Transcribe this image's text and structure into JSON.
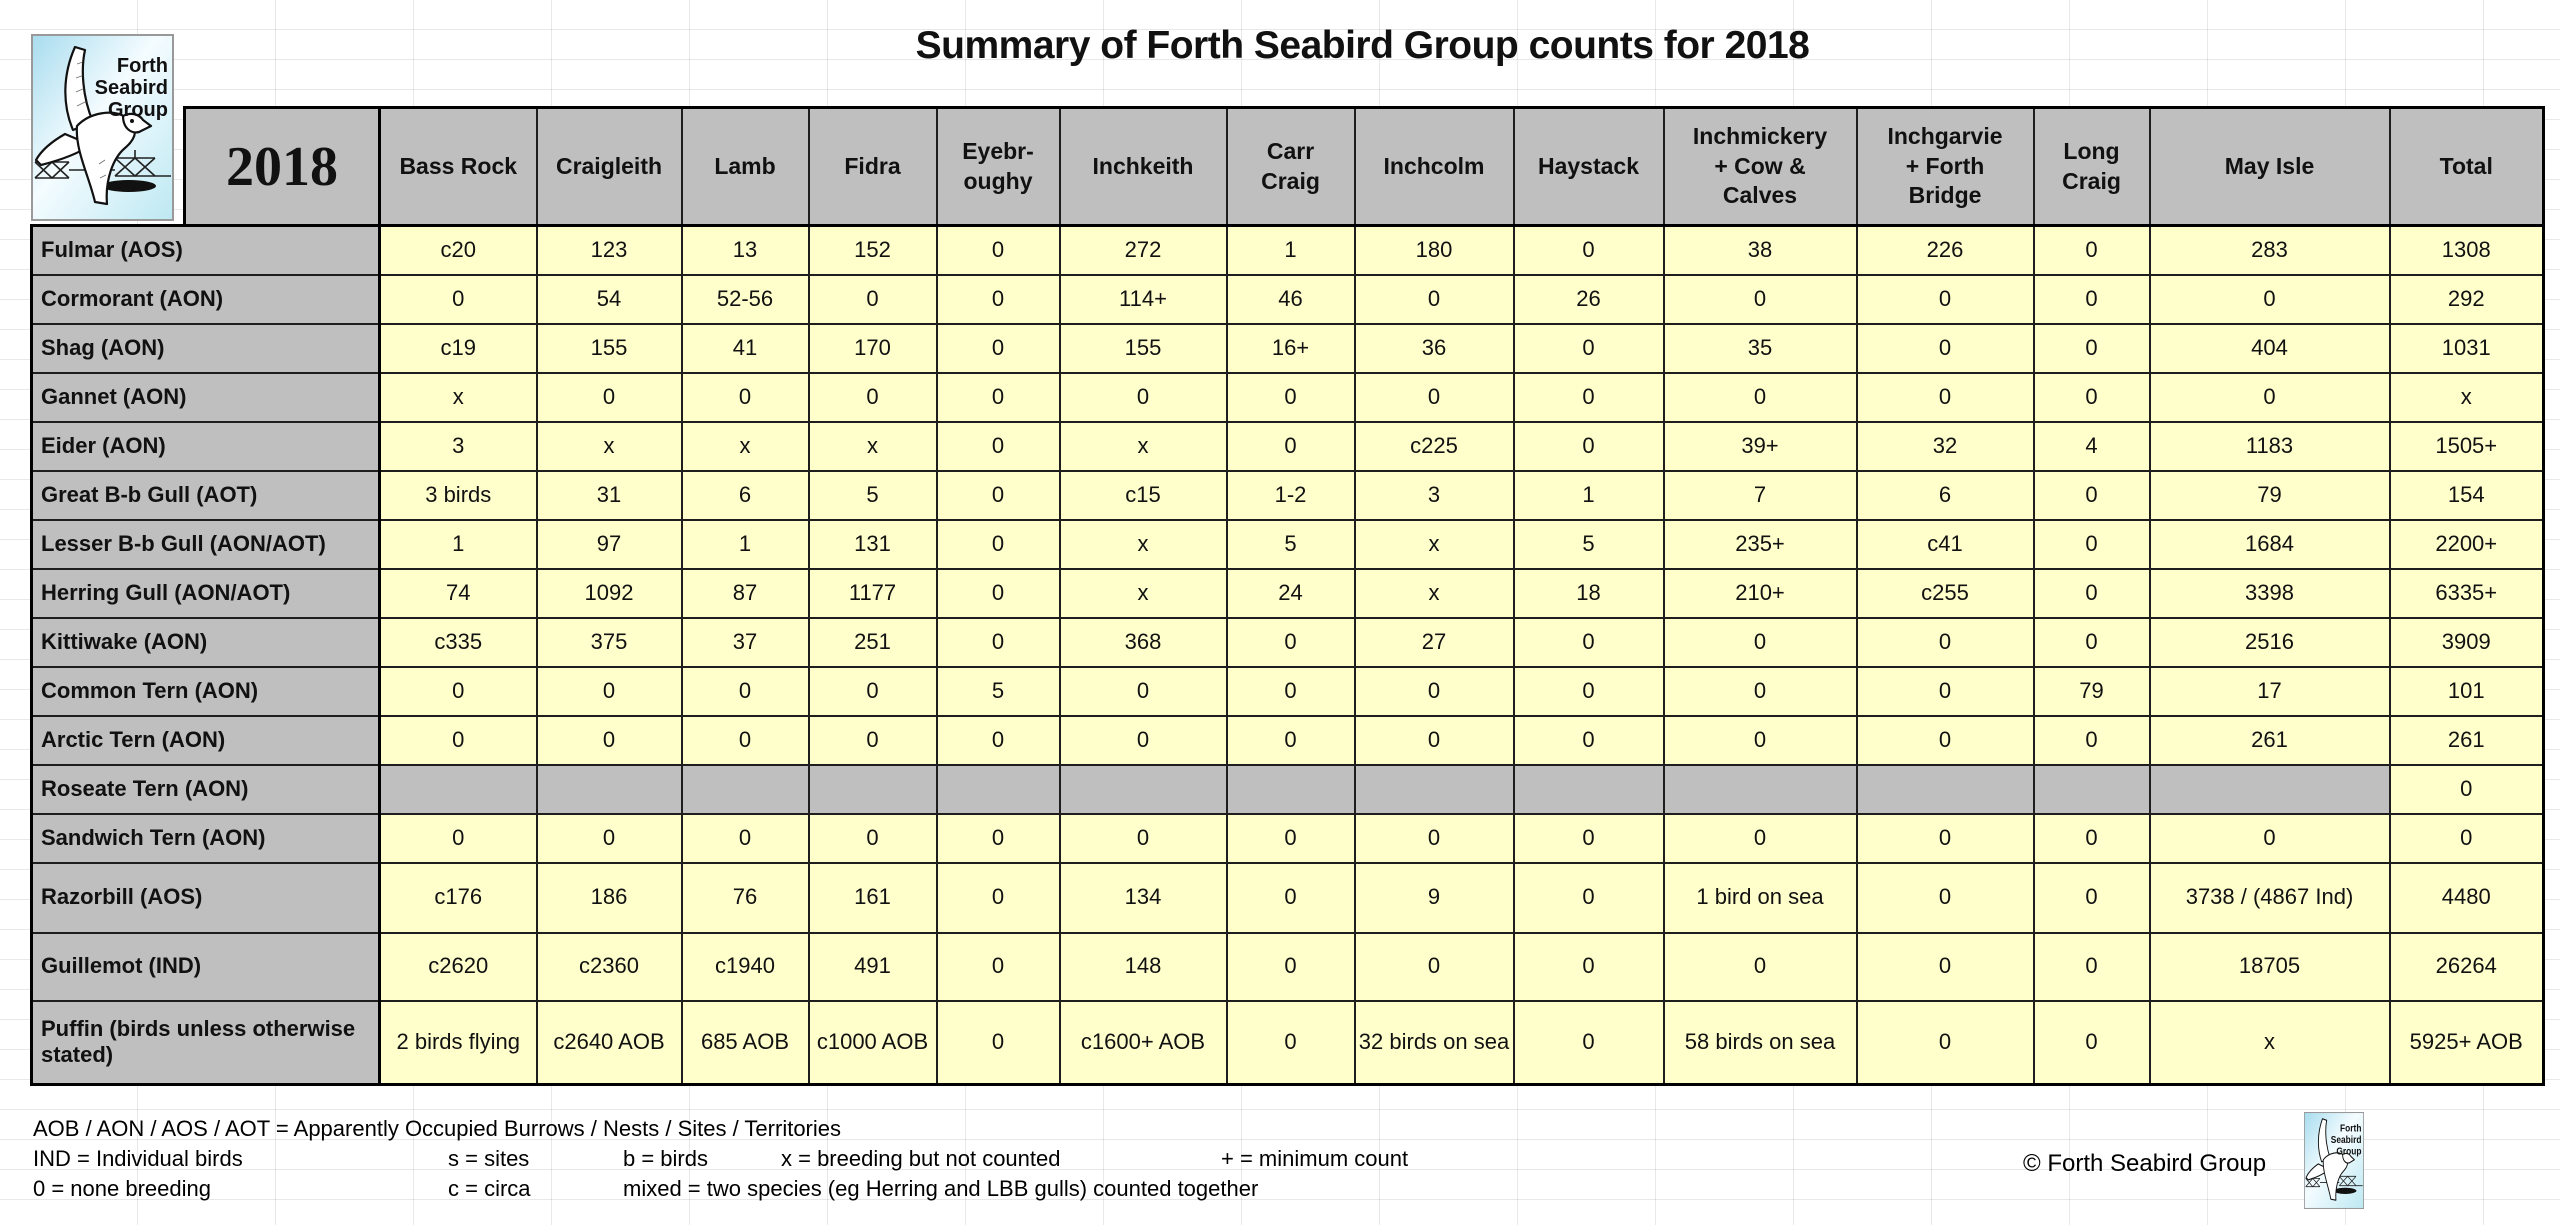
{
  "title": "Summary of Forth Seabird Group counts for 2018",
  "logo": {
    "name": "Forth Seabird Group",
    "lines": [
      "Forth",
      "Seabird",
      "Group"
    ]
  },
  "table": {
    "year": "2018",
    "columns": [
      "Bass Rock",
      "Craigleith",
      "Lamb",
      "Fidra",
      "Eyebr-\noughy",
      "Inchkeith",
      "Carr\nCraig",
      "Inchcolm",
      "Haystack",
      "Inchmickery\n+ Cow &\nCalves",
      "Inchgarvie\n+ Forth\nBridge",
      "Long\nCraig",
      "May Isle",
      "Total"
    ],
    "rows": [
      {
        "label": "Fulmar (AOS)",
        "values": [
          "c20",
          "123",
          "13",
          "152",
          "0",
          "272",
          "1",
          "180",
          "0",
          "38",
          "226",
          "0",
          "283",
          "1308"
        ]
      },
      {
        "label": "Cormorant (AON)",
        "values": [
          "0",
          "54",
          "52-56",
          "0",
          "0",
          "114+",
          "46",
          "0",
          "26",
          "0",
          "0",
          "0",
          "0",
          "292"
        ]
      },
      {
        "label": "Shag (AON)",
        "values": [
          "c19",
          "155",
          "41",
          "170",
          "0",
          "155",
          "16+",
          "36",
          "0",
          "35",
          "0",
          "0",
          "404",
          "1031"
        ]
      },
      {
        "label": "Gannet (AON)",
        "values": [
          "x",
          "0",
          "0",
          "0",
          "0",
          "0",
          "0",
          "0",
          "0",
          "0",
          "0",
          "0",
          "0",
          "x"
        ]
      },
      {
        "label": "Eider (AON)",
        "values": [
          "3",
          "x",
          "x",
          "x",
          "0",
          "x",
          "0",
          "c225",
          "0",
          "39+",
          "32",
          "4",
          "1183",
          "1505+"
        ]
      },
      {
        "label": "Great B-b Gull (AOT)",
        "values": [
          "3 birds",
          "31",
          "6",
          "5",
          "0",
          "c15",
          "1-2",
          "3",
          "1",
          "7",
          "6",
          "0",
          "79",
          "154"
        ]
      },
      {
        "label": "Lesser B-b Gull (AON/AOT)",
        "values": [
          "1",
          "97",
          "1",
          "131",
          "0",
          "x",
          "5",
          "x",
          "5",
          "235+",
          "c41",
          "0",
          "1684",
          "2200+"
        ]
      },
      {
        "label": "Herring Gull (AON/AOT)",
        "values": [
          "74",
          "1092",
          "87",
          "1177",
          "0",
          "x",
          "24",
          "x",
          "18",
          "210+",
          "c255",
          "0",
          "3398",
          "6335+"
        ]
      },
      {
        "label": "Kittiwake (AON)",
        "values": [
          "c335",
          "375",
          "37",
          "251",
          "0",
          "368",
          "0",
          "27",
          "0",
          "0",
          "0",
          "0",
          "2516",
          "3909"
        ]
      },
      {
        "label": "Common Tern (AON)",
        "values": [
          "0",
          "0",
          "0",
          "0",
          "5",
          "0",
          "0",
          "0",
          "0",
          "0",
          "0",
          "79",
          "17",
          "101"
        ]
      },
      {
        "label": "Arctic Tern (AON)",
        "values": [
          "0",
          "0",
          "0",
          "0",
          "0",
          "0",
          "0",
          "0",
          "0",
          "0",
          "0",
          "0",
          "261",
          "261"
        ]
      },
      {
        "label": "Roseate Tern (AON)",
        "values": [
          null,
          null,
          null,
          null,
          null,
          null,
          null,
          null,
          null,
          null,
          null,
          null,
          null,
          "0"
        ]
      },
      {
        "label": "Sandwich Tern (AON)",
        "values": [
          "0",
          "0",
          "0",
          "0",
          "0",
          "0",
          "0",
          "0",
          "0",
          "0",
          "0",
          "0",
          "0",
          "0"
        ]
      },
      {
        "label": "Razorbill (AOS)",
        "values": [
          "c176",
          "186",
          "76",
          "161",
          "0",
          "134",
          "0",
          "9",
          "0",
          "1 bird on sea",
          "0",
          "0",
          "3738 / (4867 Ind)",
          "4480"
        ]
      },
      {
        "label": "Guillemot (IND)",
        "values": [
          "c2620",
          "c2360",
          "c1940",
          "491",
          "0",
          "148",
          "0",
          "0",
          "0",
          "0",
          "0",
          "0",
          "18705",
          "26264"
        ]
      },
      {
        "label": "Puffin (birds unless otherwise stated)",
        "values": [
          "2 birds flying",
          "c2640 AOB",
          "685 AOB",
          "c1000 AOB",
          "0",
          "c1600+ AOB",
          "0",
          "32 birds on sea",
          "0",
          "58 birds on sea",
          "0",
          "0",
          "x",
          "5925+ AOB"
        ]
      }
    ]
  },
  "legend": {
    "line1": "AOB / AON / AOS / AOT = Apparently Occupied Burrows / Nests / Sites / Territories",
    "line2": [
      "IND = Individual birds",
      "s = sites",
      "b = birds",
      "x  = breeding but not counted",
      "+ = minimum count"
    ],
    "line3": [
      "0 = none breeding",
      "c = circa",
      "mixed = two species (eg Herring and LBB gulls) counted together"
    ]
  },
  "copyright": "© Forth Seabird Group",
  "colors": {
    "cell_yellow": "#FFFFCC",
    "header_gray": "#BFBFBF"
  }
}
